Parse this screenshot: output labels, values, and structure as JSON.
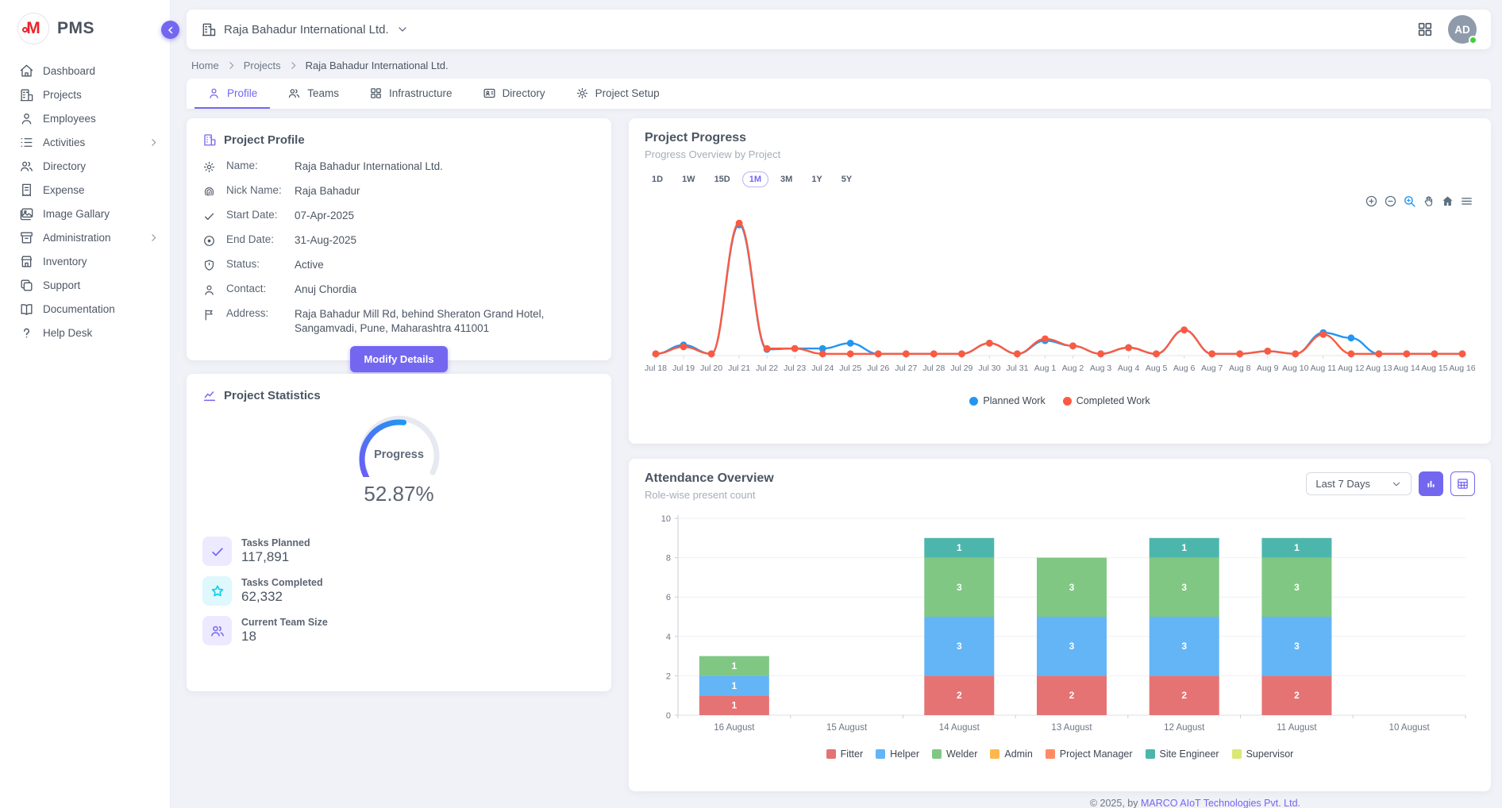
{
  "app": {
    "name": "PMS"
  },
  "theme": {
    "primary": "#7367f0",
    "logo_red": "#e8252c"
  },
  "sidebar": {
    "items": [
      {
        "label": "Dashboard"
      },
      {
        "label": "Projects"
      },
      {
        "label": "Employees"
      },
      {
        "label": "Activities",
        "expandable": true
      },
      {
        "label": "Directory"
      },
      {
        "label": "Expense"
      },
      {
        "label": "Image Gallary"
      },
      {
        "label": "Administration",
        "expandable": true
      },
      {
        "label": "Inventory"
      },
      {
        "label": "Support"
      },
      {
        "label": "Documentation"
      },
      {
        "label": "Help Desk"
      }
    ]
  },
  "header": {
    "company_selector": "Raja Bahadur International Ltd.",
    "avatar_initials": "AD"
  },
  "breadcrumb": {
    "items": [
      "Home",
      "Projects",
      "Raja Bahadur International Ltd."
    ]
  },
  "tabs": [
    {
      "label": "Profile",
      "active": true
    },
    {
      "label": "Teams",
      "active": false
    },
    {
      "label": "Infrastructure",
      "active": false
    },
    {
      "label": "Directory",
      "active": false
    },
    {
      "label": "Project Setup",
      "active": false
    }
  ],
  "profile_card": {
    "title": "Project Profile",
    "fields": [
      {
        "label": "Name:",
        "value": "Raja Bahadur International Ltd."
      },
      {
        "label": "Nick Name:",
        "value": "Raja Bahadur"
      },
      {
        "label": "Start Date:",
        "value": "07-Apr-2025"
      },
      {
        "label": "End Date:",
        "value": "31-Aug-2025"
      },
      {
        "label": "Status:",
        "value": "Active"
      },
      {
        "label": "Contact:",
        "value": "Anuj Chordia"
      },
      {
        "label": "Address:",
        "value": "Raja Bahadur Mill Rd, behind Sheraton Grand Hotel, Sangamvadi, Pune, Maharashtra 411001"
      }
    ],
    "button": "Modify Details"
  },
  "stats_card": {
    "title": "Project Statistics",
    "gauge": {
      "label": "Progress",
      "value": "52.87%",
      "percent": 52.87
    },
    "stats": [
      {
        "label": "Tasks Planned",
        "value": "117,891"
      },
      {
        "label": "Tasks Completed",
        "value": "62,332"
      },
      {
        "label": "Current Team Size",
        "value": "18"
      }
    ]
  },
  "progress_card": {
    "title": "Project Progress",
    "subtitle": "Progress Overview by Project",
    "ranges": [
      "1D",
      "1W",
      "15D",
      "1M",
      "3M",
      "1Y",
      "5Y"
    ],
    "active_range": "1M"
  },
  "attendance_card": {
    "title": "Attendance Overview",
    "subtitle": "Role-wise present count",
    "filter": "Last 7 Days"
  },
  "footer": {
    "copyright": "© 2025, by",
    "company_link": "MARCO AIoT Technologies Pvt. Ltd."
  },
  "chart_data": [
    {
      "type": "line",
      "title": "Project Progress",
      "x": [
        "Jul 18",
        "Jul 19",
        "Jul 20",
        "Jul 21",
        "Jul 22",
        "Jul 23",
        "Jul 24",
        "Jul 25",
        "Jul 26",
        "Jul 27",
        "Jul 28",
        "Jul 29",
        "Jul 30",
        "Jul 31",
        "Aug 1",
        "Aug 2",
        "Aug 3",
        "Aug 4",
        "Aug 5",
        "Aug 6",
        "Aug 7",
        "Aug 8",
        "Aug 9",
        "Aug 10",
        "Aug 11",
        "Aug 12",
        "Aug 13",
        "Aug 14",
        "Aug 15",
        "Aug 16"
      ],
      "series": [
        {
          "name": "Planned Work",
          "color": "#2196f3",
          "values": [
            0.2,
            1.2,
            0.2,
            14.8,
            0.7,
            0.8,
            0.8,
            1.4,
            0.2,
            0.2,
            0.2,
            0.2,
            1.4,
            0.2,
            1.7,
            1.1,
            0.2,
            0.9,
            0.2,
            2.9,
            0.2,
            0.2,
            0.5,
            0.2,
            2.6,
            2.0,
            0.2,
            0.2,
            0.2,
            0.2
          ]
        },
        {
          "name": "Completed Work",
          "color": "#fb5a41",
          "values": [
            0.2,
            1.0,
            0.2,
            15,
            0.8,
            0.8,
            0.2,
            0.2,
            0.2,
            0.2,
            0.2,
            0.2,
            1.4,
            0.2,
            1.9,
            1.1,
            0.2,
            0.9,
            0.2,
            2.9,
            0.2,
            0.2,
            0.5,
            0.2,
            2.4,
            0.2,
            0.2,
            0.2,
            0.2,
            0.2
          ]
        }
      ],
      "ylim": [
        0,
        16
      ],
      "grid": false,
      "legend_position": "bottom"
    },
    {
      "type": "bar",
      "stacked": true,
      "title": "Attendance Overview",
      "categories": [
        "16 August",
        "15 August",
        "14 August",
        "13 August",
        "12 August",
        "11 August",
        "10 August"
      ],
      "series": [
        {
          "name": "Fitter",
          "color": "#e57373",
          "values": [
            1,
            0,
            2,
            2,
            2,
            2,
            0
          ]
        },
        {
          "name": "Helper",
          "color": "#64b5f6",
          "values": [
            1,
            0,
            3,
            3,
            3,
            3,
            0
          ]
        },
        {
          "name": "Welder",
          "color": "#81c784",
          "values": [
            1,
            0,
            3,
            3,
            3,
            3,
            0
          ]
        },
        {
          "name": "Admin",
          "color": "#ffb74d",
          "values": [
            0,
            0,
            0,
            0,
            0,
            0,
            0
          ]
        },
        {
          "name": "Project Manager",
          "color": "#ff8a65",
          "values": [
            0,
            0,
            0,
            0,
            0,
            0,
            0
          ]
        },
        {
          "name": "Site Engineer",
          "color": "#4db6ac",
          "values": [
            0,
            0,
            1,
            0,
            1,
            1,
            0
          ]
        },
        {
          "name": "Supervisor",
          "color": "#dce775",
          "values": [
            0,
            0,
            0,
            0,
            0,
            0,
            0
          ]
        }
      ],
      "ylim": [
        0,
        10
      ],
      "yticks": [
        0,
        2,
        4,
        6,
        8,
        10
      ],
      "grid": true,
      "legend_position": "bottom"
    }
  ]
}
